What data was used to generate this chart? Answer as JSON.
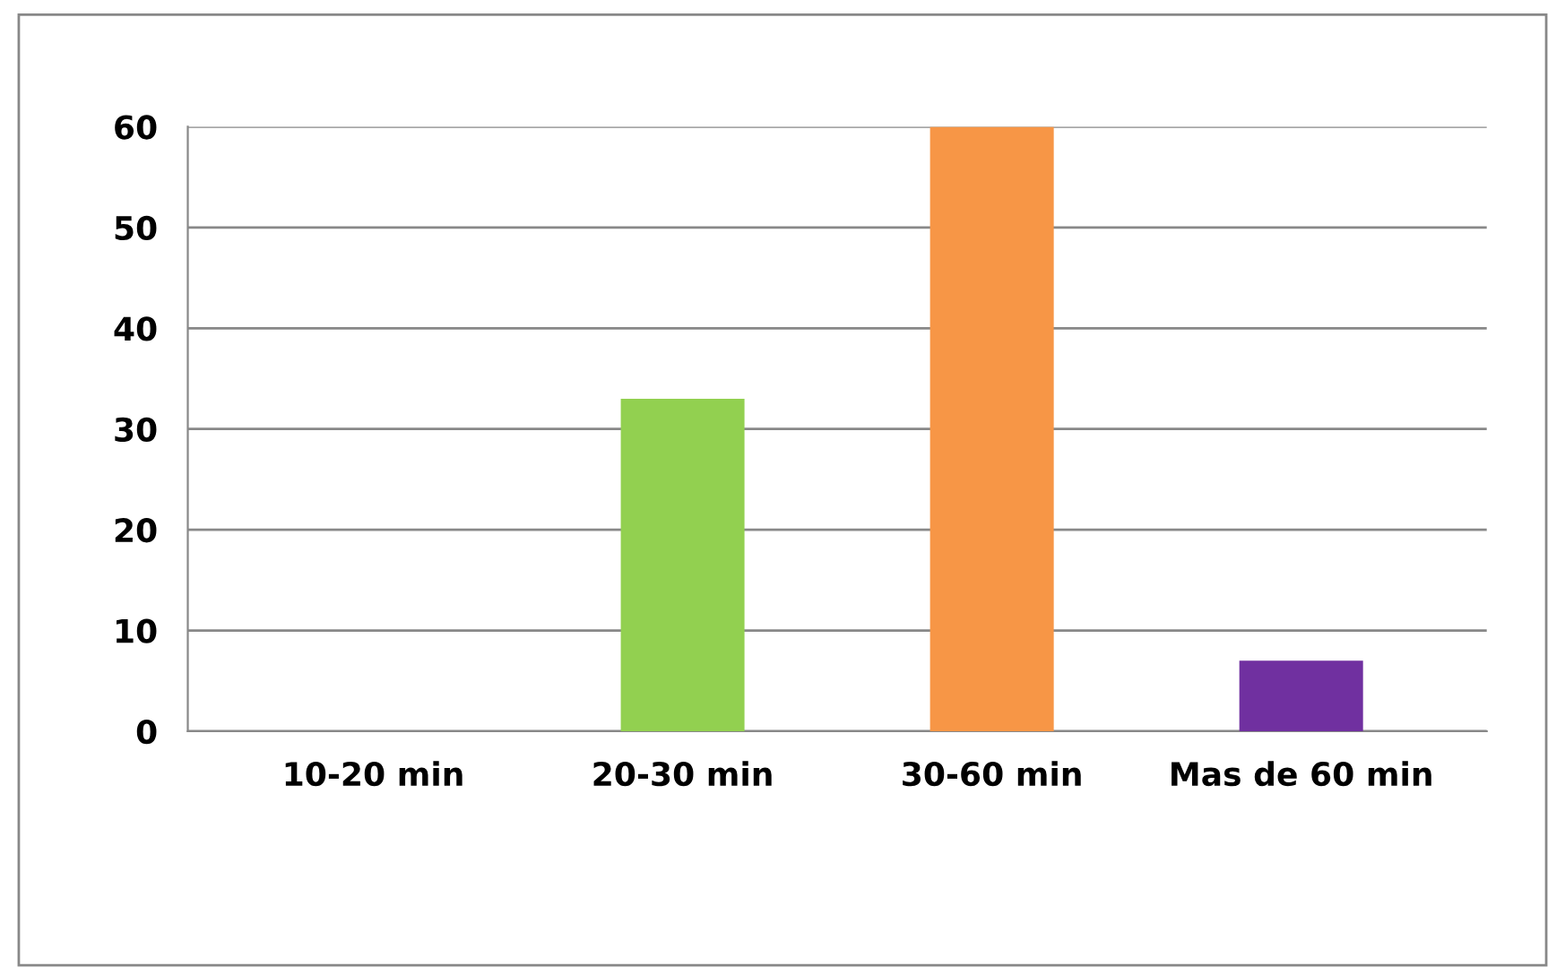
{
  "chart_data": {
    "type": "bar",
    "categories": [
      "10-20 min",
      "20-30 min",
      "30-60 min",
      "Mas de 60 min"
    ],
    "values": [
      0,
      33,
      60,
      7
    ],
    "colors": [
      "#3a6ea5",
      "#92d050",
      "#f79646",
      "#7030a0"
    ],
    "ylim": [
      0,
      60
    ],
    "yticks": [
      0,
      10,
      20,
      30,
      40,
      50,
      60
    ],
    "grid": "y"
  }
}
